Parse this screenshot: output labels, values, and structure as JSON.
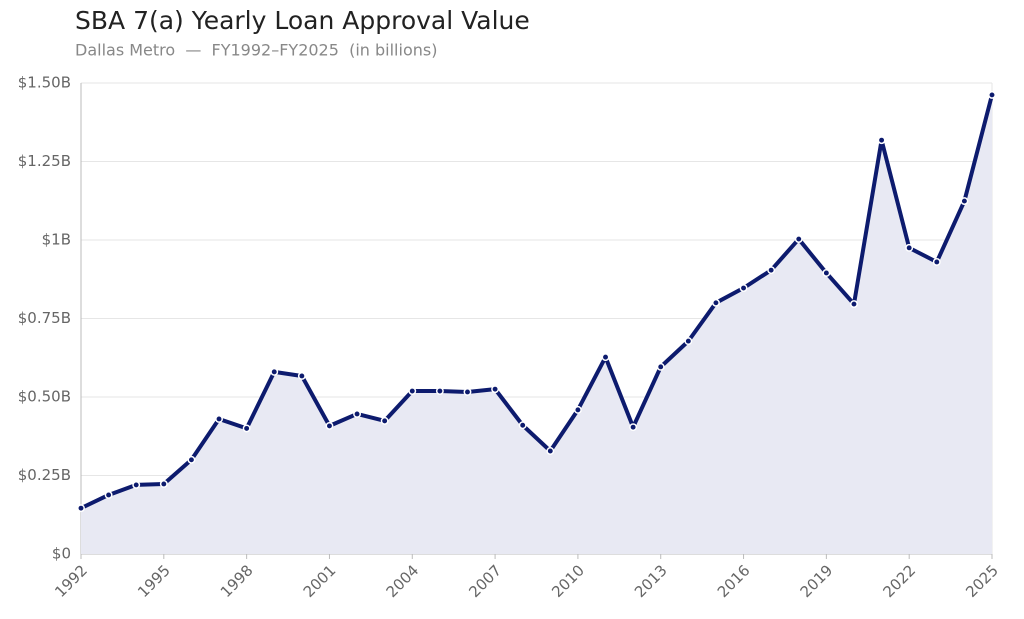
{
  "chart_data": {
    "type": "area-line",
    "title": "SBA 7(a) Yearly Loan Approval Value",
    "subtitle": "Dallas Metro  —  FY1992–FY2025  (in billions)",
    "x": [
      1992,
      1993,
      1994,
      1995,
      1996,
      1997,
      1998,
      1999,
      2000,
      2001,
      2002,
      2003,
      2004,
      2005,
      2006,
      2007,
      2008,
      2009,
      2010,
      2011,
      2012,
      2013,
      2014,
      2015,
      2016,
      2017,
      2018,
      2019,
      2020,
      2021,
      2022,
      2023,
      2024,
      2025
    ],
    "series": [
      {
        "name": "Loan Approval Value",
        "color": "#0d1b6e",
        "values": [
          0.146,
          0.188,
          0.22,
          0.223,
          0.3,
          0.43,
          0.4,
          0.58,
          0.567,
          0.408,
          0.446,
          0.424,
          0.519,
          0.519,
          0.516,
          0.525,
          0.41,
          0.328,
          0.459,
          0.627,
          0.404,
          0.596,
          0.678,
          0.8,
          0.847,
          0.904,
          1.003,
          0.895,
          0.796,
          1.318,
          0.975,
          0.93,
          1.124,
          1.462
        ]
      }
    ],
    "fill_color": "#e8e9f3",
    "xlim": [
      1992,
      2025
    ],
    "xticks": [
      1992,
      1995,
      1998,
      2001,
      2004,
      2007,
      2010,
      2013,
      2016,
      2019,
      2022,
      2025
    ],
    "ylim": [
      0,
      1.5
    ],
    "yticks": [
      {
        "value": 0,
        "label": "$0"
      },
      {
        "value": 0.25,
        "label": "$0.25B"
      },
      {
        "value": 0.5,
        "label": "$0.50B"
      },
      {
        "value": 0.75,
        "label": "$0.75B"
      },
      {
        "value": 1,
        "label": "$1B"
      },
      {
        "value": 1.25,
        "label": "$1.25B"
      },
      {
        "value": 1.5,
        "label": "$1.50B"
      }
    ],
    "grid": true
  }
}
